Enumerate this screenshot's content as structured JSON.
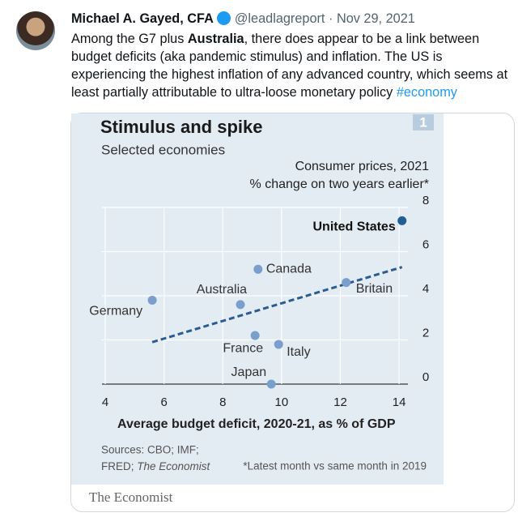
{
  "tweet": {
    "name": "Michael A. Gayed, CFA",
    "handle": "@leadlagreport",
    "separator": "·",
    "date": "Nov 29, 2021",
    "text_lines": [
      [
        "Among the G7 plus ",
        "Australia",
        ", there does appear to be a link between"
      ],
      [
        "budget deficits (aka pandemic stimulus) and inflation. The US is"
      ],
      [
        "experiencing the highest inflation of any advanced country, which seems at"
      ],
      [
        "least partially attributable to ultra-loose monetary policy ",
        "#economy"
      ]
    ]
  },
  "chart_data": {
    "type": "scatter",
    "title": "Stimulus and spike",
    "subtitle": "Selected economies",
    "badge": "1",
    "y_label": [
      "Consumer prices, 2021",
      "% change on two years earlier*"
    ],
    "x_label": "Average budget deficit, 2020-21, as % of GDP",
    "sources": [
      "Sources: CBO; IMF;",
      "FRED; ",
      "The Economist"
    ],
    "footnote": "*Latest month vs same month in 2019",
    "publisher": "The Economist",
    "labels": [
      "United States",
      "Canada",
      "Britain",
      "Australia",
      "Germany",
      "France",
      "Italy",
      "Japan"
    ],
    "x": [
      14.1,
      9.2,
      12.2,
      8.6,
      5.6,
      9.1,
      9.9,
      9.65
    ],
    "values": [
      7.4,
      5.2,
      4.6,
      3.6,
      3.8,
      2.2,
      1.8,
      0
    ],
    "colors": [
      "#1f5f94",
      "#7b9fcc",
      "#7b9fcc",
      "#7b9fcc",
      "#7b9fcc",
      "#7b9fcc",
      "#7b9fcc",
      "#7b9fcc"
    ],
    "trend": {
      "x": [
        5.6,
        14.1
      ],
      "values": [
        1.9,
        5.3
      ],
      "color": "#2b5c8f"
    },
    "xlim": [
      4,
      14.3
    ],
    "ylim": [
      0,
      8
    ],
    "xticks": [
      4,
      6,
      8,
      10,
      12,
      14
    ],
    "yticks": [
      0,
      2,
      4,
      6,
      8
    ],
    "grid": true
  }
}
